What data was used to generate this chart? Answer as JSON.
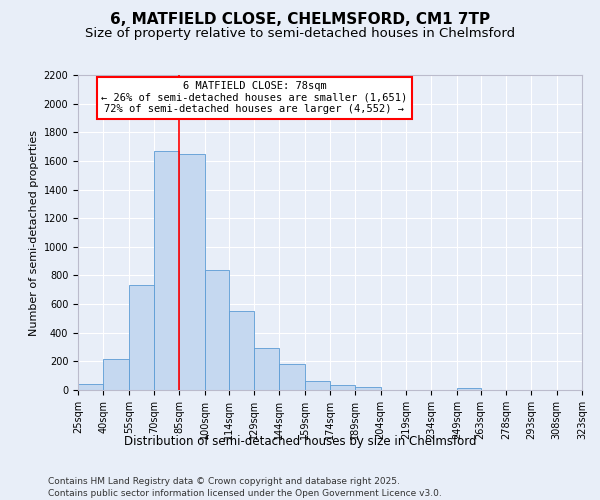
{
  "title1": "6, MATFIELD CLOSE, CHELMSFORD, CM1 7TP",
  "title2": "Size of property relative to semi-detached houses in Chelmsford",
  "xlabel": "Distribution of semi-detached houses by size in Chelmsford",
  "ylabel": "Number of semi-detached properties",
  "bin_edges": [
    25,
    40,
    55,
    70,
    85,
    100,
    114,
    129,
    144,
    159,
    174,
    189,
    204,
    219,
    234,
    249,
    263,
    278,
    293,
    308,
    323
  ],
  "bin_labels": [
    "25sqm",
    "40sqm",
    "55sqm",
    "70sqm",
    "85sqm",
    "100sqm",
    "114sqm",
    "129sqm",
    "144sqm",
    "159sqm",
    "174sqm",
    "189sqm",
    "204sqm",
    "219sqm",
    "234sqm",
    "249sqm",
    "263sqm",
    "278sqm",
    "293sqm",
    "308sqm",
    "323sqm"
  ],
  "values": [
    40,
    220,
    730,
    1670,
    1650,
    840,
    555,
    295,
    180,
    65,
    35,
    20,
    0,
    0,
    0,
    15,
    0,
    0,
    0,
    0
  ],
  "bar_color": "#c5d8f0",
  "bar_edge_color": "#5b9bd5",
  "red_line_x": 85,
  "annotation_line1": "6 MATFIELD CLOSE: 78sqm",
  "annotation_line2": "← 26% of semi-detached houses are smaller (1,651)",
  "annotation_line3": "72% of semi-detached houses are larger (4,552) →",
  "ylim": [
    0,
    2200
  ],
  "yticks": [
    0,
    200,
    400,
    600,
    800,
    1000,
    1200,
    1400,
    1600,
    1800,
    2000,
    2200
  ],
  "background_color": "#e8eef8",
  "plot_background_color": "#e8eef8",
  "grid_color": "#ffffff",
  "footer1": "Contains HM Land Registry data © Crown copyright and database right 2025.",
  "footer2": "Contains public sector information licensed under the Open Government Licence v3.0.",
  "title1_fontsize": 11,
  "title2_fontsize": 9.5,
  "annotation_fontsize": 7.5,
  "xlabel_fontsize": 8.5,
  "ylabel_fontsize": 8,
  "tick_fontsize": 7,
  "footer_fontsize": 6.5
}
